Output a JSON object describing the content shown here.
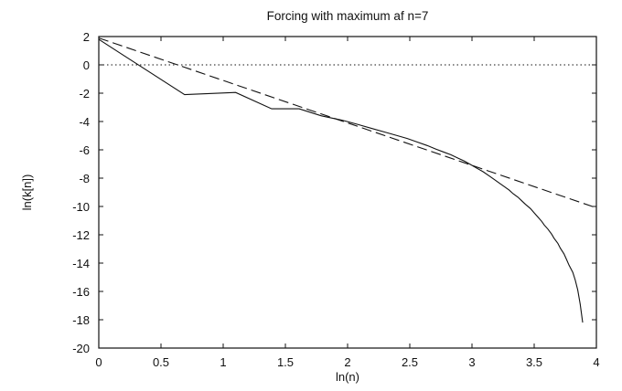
{
  "chart_data": {
    "type": "line",
    "title": "Forcing with maximum af n=7",
    "xlabel": "ln(n)",
    "ylabel": "ln(k[n])",
    "xlim": [
      0,
      4
    ],
    "ylim": [
      -20,
      2
    ],
    "xticks": [
      0,
      0.5,
      1,
      1.5,
      2,
      2.5,
      3,
      3.5,
      4
    ],
    "xtick_labels": [
      "0",
      "0.5",
      "1",
      "1.5",
      "2",
      "2.5",
      "3",
      "3.5",
      "4"
    ],
    "yticks": [
      2,
      0,
      -2,
      -4,
      -6,
      -8,
      -10,
      -12,
      -14,
      -16,
      -18,
      -20
    ],
    "ytick_labels": [
      "2",
      "0",
      "-2",
      "-4",
      "-6",
      "-8",
      "-10",
      "-12",
      "-14",
      "-16",
      "-18",
      "-20"
    ],
    "reference_line_y": 0,
    "series": [
      {
        "style": "solid",
        "x": [
          0,
          0.69,
          1.1,
          1.39,
          1.61,
          1.79,
          1.95,
          2.08,
          2.2,
          2.3,
          2.4,
          2.48,
          2.56,
          2.64,
          2.71,
          2.77,
          2.83,
          2.89,
          2.94,
          3.0,
          3.04,
          3.09,
          3.14,
          3.18,
          3.22,
          3.26,
          3.3,
          3.33,
          3.37,
          3.4,
          3.43,
          3.47,
          3.5,
          3.53,
          3.56,
          3.58,
          3.61,
          3.64,
          3.66,
          3.69,
          3.71,
          3.74,
          3.76,
          3.78,
          3.81,
          3.83,
          3.85,
          3.87,
          3.89
        ],
        "y": [
          1.8,
          -2.1,
          -1.95,
          -3.1,
          -3.1,
          -3.6,
          -3.9,
          -4.2,
          -4.5,
          -4.75,
          -5.0,
          -5.2,
          -5.45,
          -5.7,
          -5.95,
          -6.15,
          -6.35,
          -6.6,
          -6.8,
          -7.1,
          -7.3,
          -7.55,
          -7.85,
          -8.1,
          -8.35,
          -8.6,
          -8.85,
          -9.1,
          -9.35,
          -9.6,
          -9.85,
          -10.15,
          -10.45,
          -10.75,
          -11.05,
          -11.3,
          -11.6,
          -11.95,
          -12.25,
          -12.6,
          -12.95,
          -13.35,
          -13.75,
          -14.15,
          -14.65,
          -15.2,
          -15.9,
          -16.9,
          -18.2
        ]
      },
      {
        "style": "dashed",
        "x": [
          0,
          4
        ],
        "y": [
          1.9,
          -10.1
        ]
      }
    ]
  }
}
